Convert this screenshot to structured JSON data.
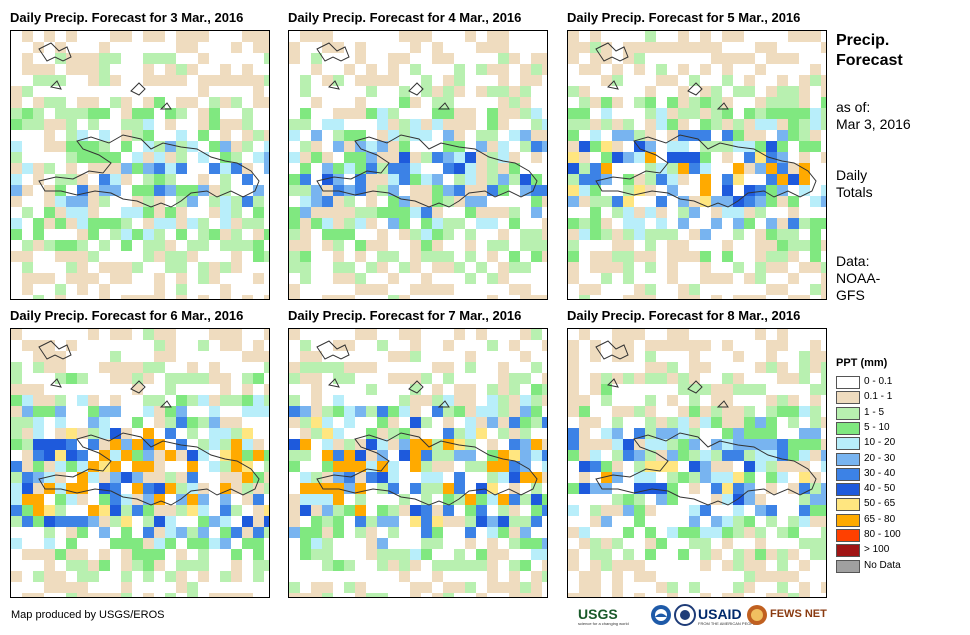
{
  "panels": [
    {
      "title": "Daily Precip. Forecast for 3 Mar., 2016",
      "seed": 3,
      "intensity": 0.8
    },
    {
      "title": "Daily Precip. Forecast for 4 Mar., 2016",
      "seed": 4,
      "intensity": 0.9
    },
    {
      "title": "Daily Precip. Forecast for 5 Mar., 2016",
      "seed": 5,
      "intensity": 1.1
    },
    {
      "title": "Daily Precip. Forecast for 6 Mar., 2016",
      "seed": 6,
      "intensity": 1.5
    },
    {
      "title": "Daily Precip. Forecast for 7 Mar., 2016",
      "seed": 7,
      "intensity": 1.6
    },
    {
      "title": "Daily Precip. Forecast for 8 Mar., 2016",
      "seed": 8,
      "intensity": 1.0
    }
  ],
  "side": {
    "title_line1": "Precip.",
    "title_line2": "Forecast",
    "asof_line1": "as of:",
    "asof_line2": "Mar 3, 2016",
    "totals_line1": "Daily",
    "totals_line2": "Totals",
    "data_line1": "Data:",
    "data_line2": "NOAA-",
    "data_line3": "GFS"
  },
  "legend": {
    "title": "PPT (mm)",
    "items": [
      {
        "label": "0 - 0.1",
        "color": "#ffffff"
      },
      {
        "label": "0.1 - 1",
        "color": "#efdcbf"
      },
      {
        "label": "1 - 5",
        "color": "#b8f0b0"
      },
      {
        "label": "5 - 10",
        "color": "#80e880"
      },
      {
        "label": "10 - 20",
        "color": "#b8eefa"
      },
      {
        "label": "20 - 30",
        "color": "#78b4f0"
      },
      {
        "label": "30 - 40",
        "color": "#3c82e6"
      },
      {
        "label": "40 - 50",
        "color": "#1e5adc"
      },
      {
        "label": "50 - 65",
        "color": "#ffe680"
      },
      {
        "label": "65 - 80",
        "color": "#ffaa00"
      },
      {
        "label": "80 - 100",
        "color": "#ff4000"
      },
      {
        "label": "> 100",
        "color": "#a01414"
      },
      {
        "label": "No Data",
        "color": "#a0a0a0"
      }
    ]
  },
  "footer": {
    "credit": "Map produced by USGS/EROS",
    "logo_usgs": "USGS",
    "logo_usgs_sub": "science for a changing world",
    "logo_usaid": "USAID",
    "logo_usaid_sub": "FROM THE AMERICAN PEOPLE",
    "logo_fews": "FEWS NET"
  }
}
